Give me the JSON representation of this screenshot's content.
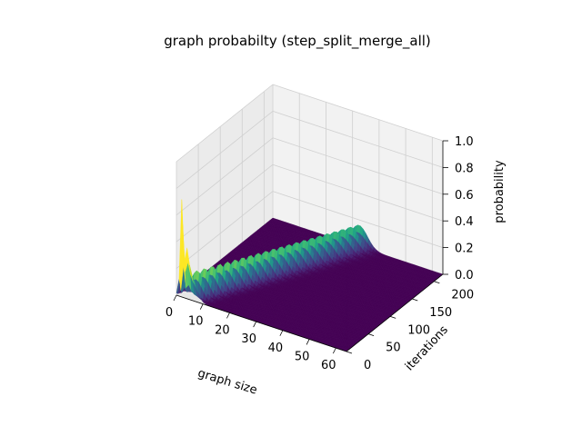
{
  "chart_data": {
    "type": "surface-3d",
    "title": "graph probabilty (step_split_merge_all)",
    "xlabel": "graph size",
    "ylabel": "iterations",
    "zlabel": "probability",
    "x_ticks": [
      "0",
      "10",
      "20",
      "30",
      "40",
      "50",
      "60"
    ],
    "y_ticks": [
      "0",
      "50",
      "100",
      "150",
      "200"
    ],
    "z_ticks": [
      "0.0",
      "0.2",
      "0.4",
      "0.6",
      "0.8",
      "1.0"
    ],
    "xlim": [
      0,
      64
    ],
    "ylim": [
      0,
      220
    ],
    "zlim": [
      0,
      1
    ],
    "colormap": "viridis",
    "grid": true,
    "ridge": [
      {
        "iteration": 0,
        "peak_graph_size": 2,
        "peak_probability": 0.65
      },
      {
        "iteration": 0,
        "peak_graph_size": 4,
        "peak_probability": 0.2
      },
      {
        "iteration": 50,
        "peak_graph_size": 9,
        "peak_probability": 0.2
      },
      {
        "iteration": 100,
        "peak_graph_size": 16,
        "peak_probability": 0.19
      },
      {
        "iteration": 150,
        "peak_graph_size": 23,
        "peak_probability": 0.17
      },
      {
        "iteration": 200,
        "peak_graph_size": 30,
        "peak_probability": 0.16
      }
    ]
  },
  "colors": {
    "surface_low": "#440154",
    "surface_high": "#fde725",
    "pane_light": "#f2f2f2",
    "pane_mid": "#e6e6e6",
    "pane_dark": "#ebebeb",
    "grid": "#cfcfcf"
  }
}
